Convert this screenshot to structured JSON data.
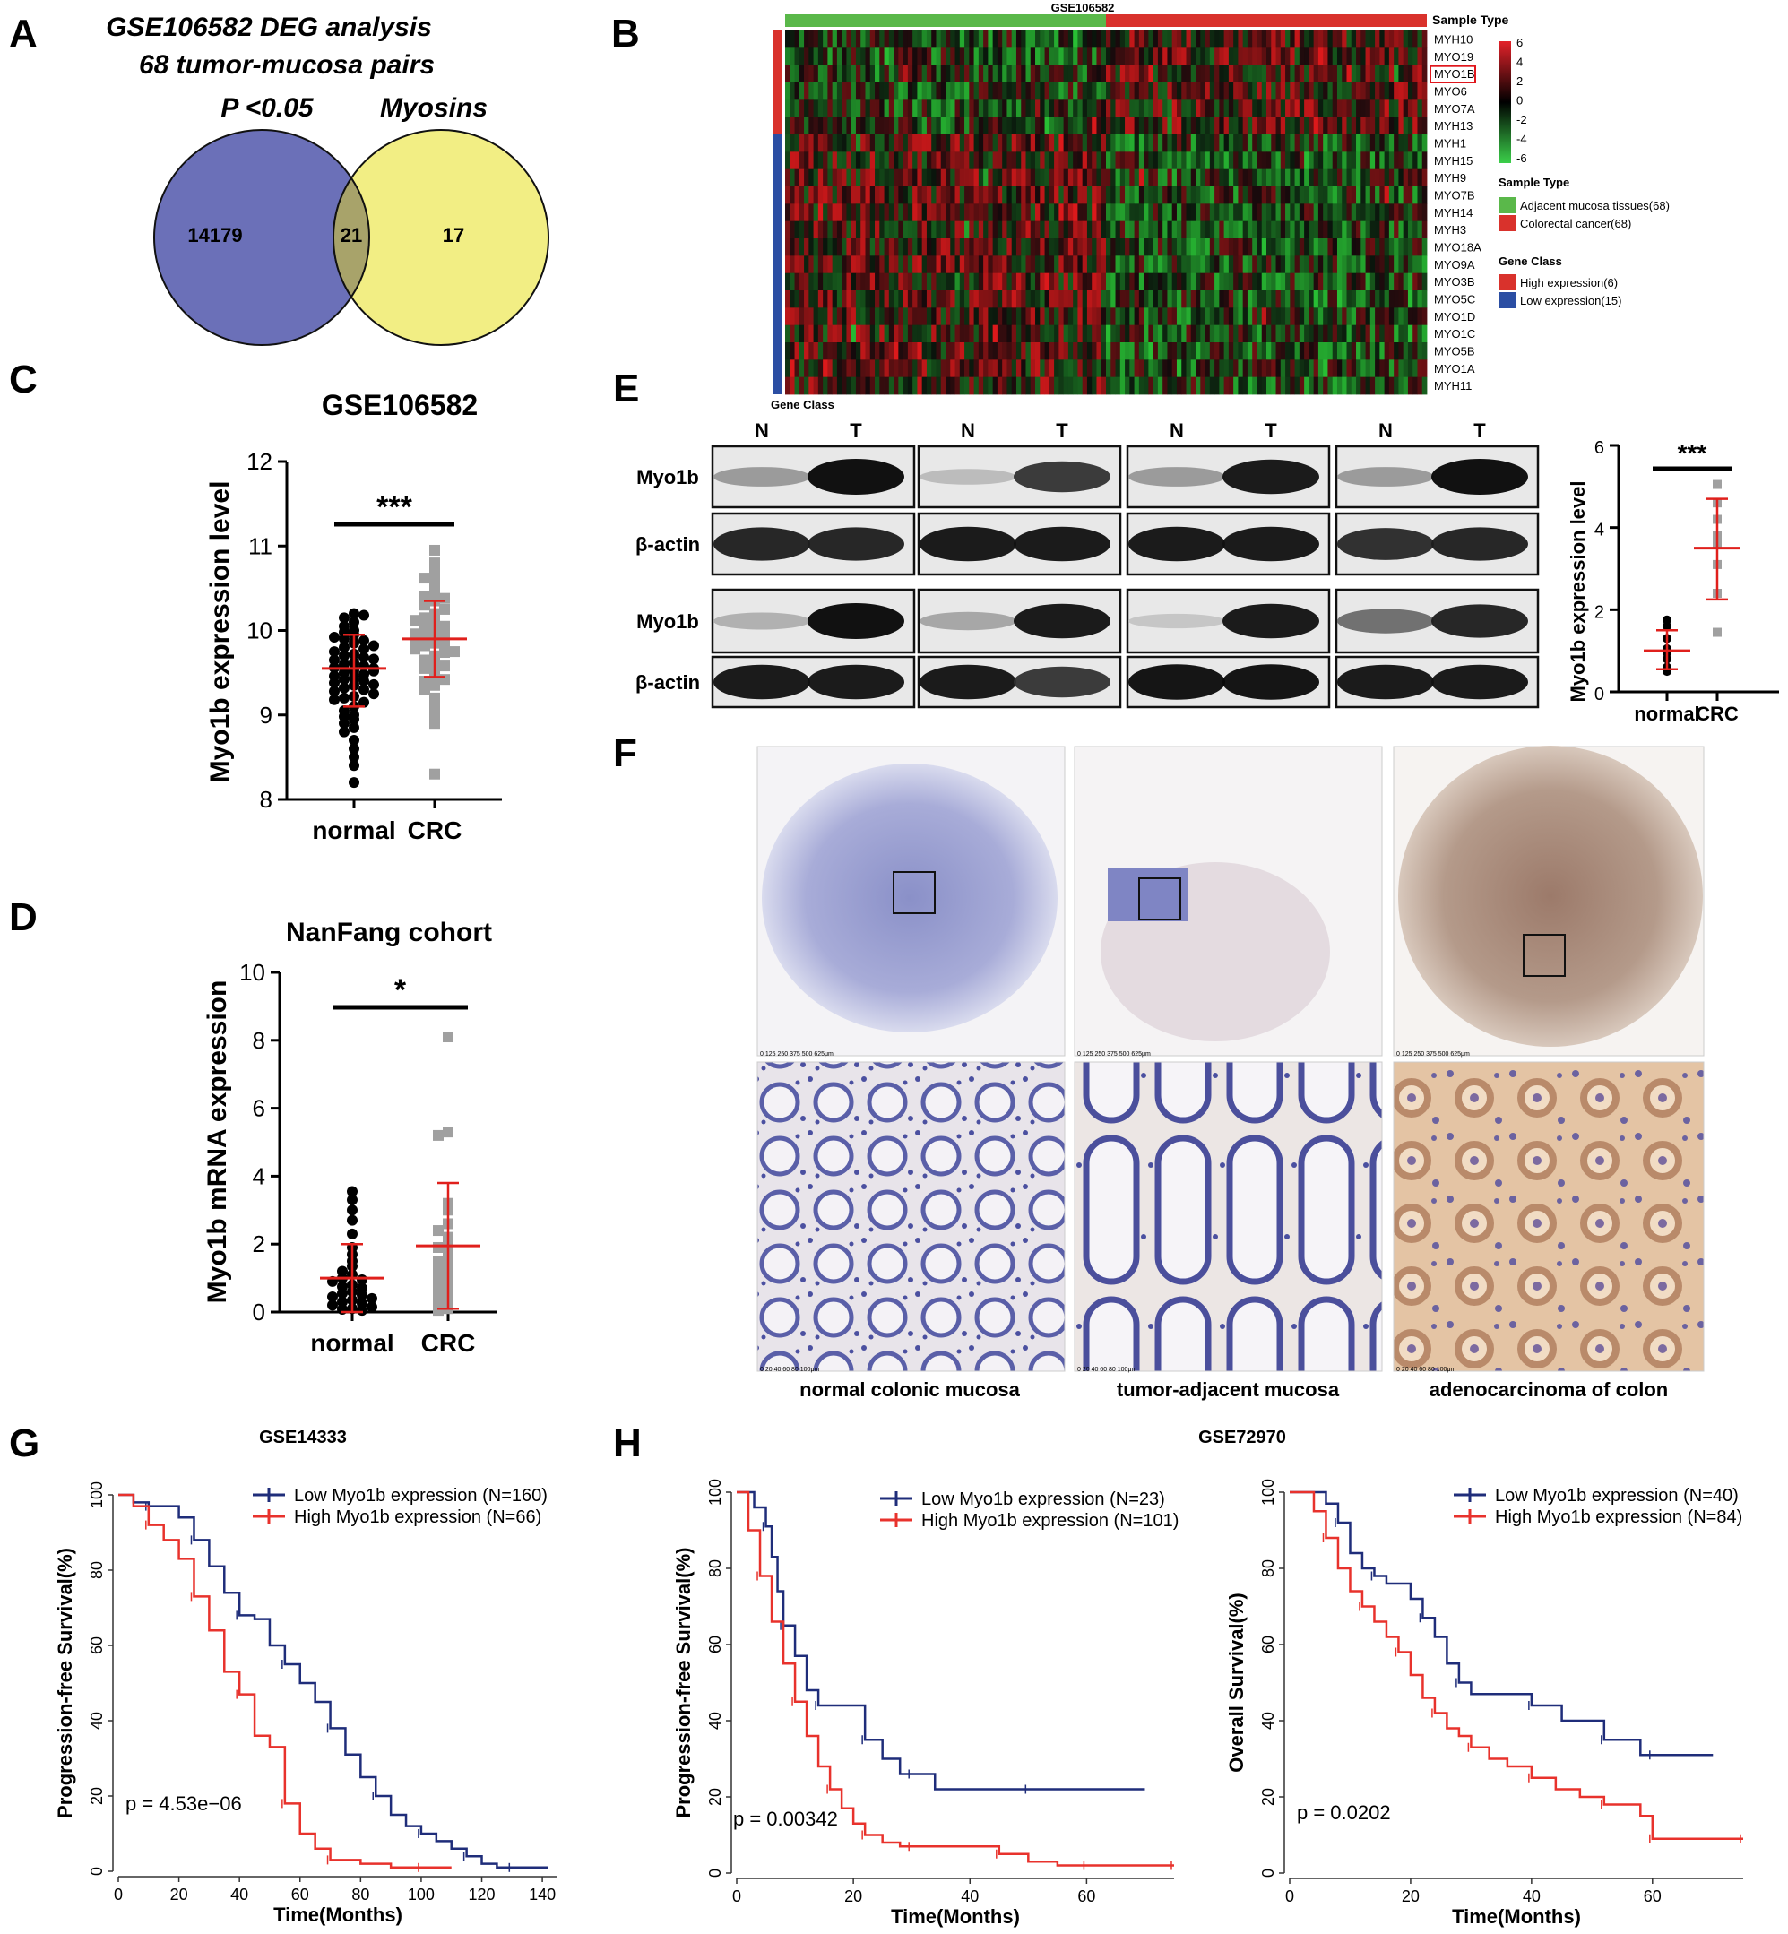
{
  "panels": {
    "A": {
      "letter": "A",
      "title_line1": "GSE106582 DEG analysis",
      "title_line2": "68 tumor-mucosa pairs",
      "set_left": "P <0.05",
      "set_right": "Myosins",
      "left_only": "14179",
      "overlap": "21",
      "right_only": "17",
      "colors": {
        "left": "#6b70b8",
        "right": "#f2ee84",
        "overlap": "#a8a36a"
      }
    },
    "B": {
      "letter": "B",
      "top_label": "GSE106582",
      "bottom_label": "Gene Class",
      "genes": [
        "MYH10",
        "MYO19",
        "MYO1B",
        "MYO6",
        "MYO7A",
        "MYH13",
        "MYH1",
        "MYH15",
        "MYH9",
        "MYO7B",
        "MYH14",
        "MYH3",
        "MYO18A",
        "MYO9A",
        "MYO3B",
        "MYO5C",
        "MYO1D",
        "MYO1C",
        "MYO5B",
        "MYO1A",
        "MYH11"
      ],
      "highlight_gene": "MYO1B",
      "legend_title_top": "Sample Type",
      "colorbar_ticks": [
        "6",
        "4",
        "2",
        "0",
        "-2",
        "-4",
        "-6"
      ],
      "sample_type_title": "Sample Type",
      "sample_types": [
        {
          "label": "Adjacent mucosa tissues(68)",
          "color": "#5ab84a"
        },
        {
          "label": "Colorectal cancer(68)",
          "color": "#d9322c"
        }
      ],
      "gene_class_title": "Gene Class",
      "gene_classes": [
        {
          "label": "High expression(6)",
          "color": "#d9322c"
        },
        {
          "label": "Low expression(15)",
          "color": "#2b4ea3"
        }
      ]
    },
    "C": {
      "letter": "C",
      "title": "GSE106582",
      "ylabel": "Myo1b expression  level",
      "sig": "***",
      "chart_data": {
        "type": "scatter",
        "title": "GSE106582",
        "ylabel": "Myo1b expression  level",
        "categories": [
          "normal",
          "CRC"
        ],
        "ylim": [
          8,
          12
        ],
        "yticks": [
          "8",
          "9",
          "10",
          "11",
          "12"
        ],
        "series": [
          {
            "name": "normal",
            "mean": 9.55,
            "sd_low": 9.1,
            "sd_high": 9.95
          },
          {
            "name": "CRC",
            "mean": 9.9,
            "sd_low": 9.45,
            "sd_high": 10.35
          }
        ],
        "points": {
          "normal": [
            10.2,
            10.15,
            10.1,
            10.05,
            10.0,
            9.98,
            9.95,
            9.9,
            9.88,
            9.85,
            9.8,
            9.78,
            9.75,
            9.72,
            9.7,
            9.68,
            9.65,
            9.62,
            9.6,
            9.58,
            9.56,
            9.55,
            9.53,
            9.5,
            9.48,
            9.46,
            9.44,
            9.42,
            9.4,
            9.38,
            9.35,
            9.32,
            9.3,
            9.28,
            9.25,
            9.22,
            9.2,
            9.15,
            9.1,
            9.05,
            9.0,
            8.95,
            8.9,
            8.85,
            8.8,
            8.7,
            8.6,
            8.5,
            8.4,
            8.2,
            10.18,
            9.92,
            9.82,
            9.66,
            9.52,
            9.36,
            9.18,
            8.98
          ],
          "CRC": [
            10.95,
            10.8,
            10.7,
            10.6,
            10.5,
            10.45,
            10.4,
            10.35,
            10.3,
            10.25,
            10.2,
            10.15,
            10.1,
            10.08,
            10.05,
            10.02,
            10.0,
            9.98,
            9.95,
            9.92,
            9.9,
            9.88,
            9.85,
            9.82,
            9.8,
            9.78,
            9.75,
            9.7,
            9.65,
            9.6,
            9.55,
            9.5,
            9.45,
            9.4,
            9.35,
            9.3,
            9.2,
            9.1,
            9.0,
            8.9,
            8.3,
            10.62,
            10.38,
            10.12,
            9.96,
            9.74,
            9.58,
            9.42
          ]
        }
      }
    },
    "D": {
      "letter": "D",
      "title": "NanFang cohort",
      "ylabel": "Myo1b mRNA expression",
      "sig": "*",
      "chart_data": {
        "type": "scatter",
        "title": "NanFang cohort",
        "ylabel": "Myo1b mRNA expression",
        "categories": [
          "normal",
          "CRC"
        ],
        "ylim": [
          0,
          10
        ],
        "yticks": [
          "0",
          "2",
          "4",
          "6",
          "8",
          "10"
        ],
        "series": [
          {
            "name": "normal",
            "mean": 1.0,
            "sd_low": 0.0,
            "sd_high": 2.0
          },
          {
            "name": "CRC",
            "mean": 1.95,
            "sd_low": 0.1,
            "sd_high": 3.8
          }
        ],
        "points": {
          "normal": [
            3.55,
            3.3,
            3.0,
            2.7,
            2.3,
            1.9,
            1.7,
            1.5,
            1.35,
            1.2,
            1.1,
            1.0,
            0.95,
            0.9,
            0.8,
            0.75,
            0.7,
            0.6,
            0.55,
            0.5,
            0.45,
            0.4,
            0.35,
            0.3,
            0.25,
            0.2,
            0.15,
            0.1,
            0.08,
            0.05
          ],
          "CRC": [
            8.1,
            5.3,
            5.2,
            3.2,
            3.0,
            2.6,
            2.4,
            2.2,
            2.0,
            1.9,
            1.8,
            1.6,
            1.5,
            1.3,
            1.2,
            1.0,
            0.9,
            0.8,
            0.7,
            0.5,
            0.4,
            0.3,
            0.2,
            0.1,
            0.05
          ]
        }
      }
    },
    "E": {
      "letter": "E",
      "lane_labels": [
        "N",
        "T",
        "N",
        "T",
        "N",
        "T",
        "N",
        "T"
      ],
      "row_labels": [
        "Myo1b",
        "β-actin",
        "Myo1b",
        "β-actin"
      ],
      "ylabel": "Myo1b expression  level",
      "sig": "***",
      "chart_data": {
        "type": "scatter",
        "ylabel": "Myo1b expression  level",
        "categories": [
          "normal",
          "CRC"
        ],
        "ylim": [
          0,
          6
        ],
        "yticks": [
          "0",
          "2",
          "4",
          "6"
        ],
        "series": [
          {
            "name": "normal",
            "mean": 1.0,
            "sd_low": 0.55,
            "sd_high": 1.5
          },
          {
            "name": "CRC",
            "mean": 3.5,
            "sd_low": 2.25,
            "sd_high": 4.7
          }
        ],
        "points": {
          "normal": [
            1.75,
            1.6,
            1.3,
            1.05,
            0.95,
            0.8,
            0.6,
            0.5
          ],
          "CRC": [
            5.05,
            4.6,
            4.2,
            3.8,
            3.6,
            3.1,
            2.4,
            1.45
          ]
        }
      }
    },
    "F": {
      "letter": "F",
      "captions": [
        "normal colonic mucosa",
        "tumor-adjacent mucosa",
        "adenocarcinoma of colon"
      ],
      "scale_top": "0   125  250  375  500  625μm",
      "scale_bottom": "0   20   40   60   80   100μm"
    },
    "G": {
      "letter": "G",
      "title": "GSE14333",
      "chart_data": {
        "type": "line",
        "title": "GSE14333",
        "xlabel": "Time(Months)",
        "ylabel": "Progression-free Survival(%)",
        "xlim": [
          0,
          145
        ],
        "ylim": [
          0,
          100
        ],
        "xticks": [
          "0",
          "20",
          "40",
          "60",
          "80",
          "100",
          "120",
          "140"
        ],
        "yticks": [
          "0",
          "20",
          "40",
          "60",
          "80",
          "100"
        ],
        "pvalue": "p = 4.53e−06",
        "series": [
          {
            "name": "Low Myo1b expression (N=160)",
            "color": "#1f2d7a",
            "x": [
              0,
              5,
              10,
              15,
              20,
              25,
              30,
              35,
              40,
              45,
              50,
              55,
              60,
              65,
              70,
              75,
              80,
              85,
              90,
              95,
              100,
              105,
              110,
              115,
              120,
              125,
              130,
              135,
              142
            ],
            "y": [
              100,
              98,
              97,
              97,
              94,
              88,
              81,
              74,
              68,
              67,
              60,
              55,
              50,
              45,
              38,
              31,
              25,
              20,
              15,
              12,
              10,
              8,
              6,
              4,
              2,
              1,
              1,
              1,
              1
            ]
          },
          {
            "name": "High Myo1b expression (N=66)",
            "color": "#e8322c",
            "x": [
              0,
              5,
              10,
              15,
              20,
              25,
              30,
              35,
              40,
              45,
              50,
              55,
              60,
              65,
              70,
              80,
              90,
              100,
              110
            ],
            "y": [
              100,
              97,
              92,
              88,
              83,
              73,
              64,
              53,
              47,
              36,
              33,
              18,
              10,
              6,
              3,
              2,
              1,
              1,
              1
            ]
          }
        ]
      }
    },
    "H1": {
      "letter": "H",
      "title": "GSE72970",
      "chart_data": {
        "type": "line",
        "title": "GSE72970",
        "xlabel": "Time(Months)",
        "ylabel": "Progression-free Survival(%)",
        "xlim": [
          0,
          75
        ],
        "ylim": [
          0,
          100
        ],
        "xticks": [
          "0",
          "20",
          "40",
          "60"
        ],
        "yticks": [
          "0",
          "20",
          "40",
          "60",
          "80",
          "100"
        ],
        "pvalue": "p = 0.00342",
        "series": [
          {
            "name": "Low Myo1b expression (N=23)",
            "color": "#1f2d7a",
            "x": [
              0,
              3,
              5,
              6,
              7,
              8,
              10,
              12,
              14,
              16,
              20,
              22,
              25,
              28,
              30,
              34,
              40,
              50,
              60,
              70
            ],
            "y": [
              100,
              96,
              91,
              83,
              74,
              65,
              57,
              48,
              44,
              44,
              44,
              35,
              30,
              26,
              26,
              22,
              22,
              22,
              22,
              22
            ]
          },
          {
            "name": "High Myo1b expression (N=101)",
            "color": "#e8322c",
            "x": [
              0,
              2,
              4,
              6,
              8,
              10,
              12,
              14,
              16,
              18,
              20,
              22,
              25,
              28,
              30,
              35,
              40,
              45,
              50,
              55,
              60,
              65,
              70,
              75
            ],
            "y": [
              100,
              90,
              78,
              66,
              55,
              45,
              36,
              28,
              22,
              17,
              13,
              10,
              8,
              7,
              7,
              7,
              7,
              5,
              3,
              2,
              2,
              2,
              2,
              2
            ]
          }
        ]
      }
    },
    "H2": {
      "chart_data": {
        "type": "line",
        "xlabel": "Time(Months)",
        "ylabel": "Overall Survival(%)",
        "xlim": [
          0,
          75
        ],
        "ylim": [
          0,
          100
        ],
        "xticks": [
          "0",
          "20",
          "40",
          "60"
        ],
        "yticks": [
          "0",
          "20",
          "40",
          "60",
          "80",
          "100"
        ],
        "pvalue": "p = 0.0202",
        "series": [
          {
            "name": "Low Myo1b expression (N=40)",
            "color": "#1f2d7a",
            "x": [
              0,
              6,
              8,
              10,
              12,
              14,
              16,
              20,
              22,
              24,
              26,
              28,
              30,
              34,
              40,
              45,
              50,
              52,
              55,
              58,
              60,
              70
            ],
            "y": [
              100,
              97,
              92,
              84,
              80,
              78,
              76,
              72,
              67,
              62,
              55,
              50,
              47,
              47,
              44,
              40,
              40,
              35,
              35,
              31,
              31,
              31
            ]
          },
          {
            "name": "High Myo1b expression (N=84)",
            "color": "#e8322c",
            "x": [
              0,
              4,
              6,
              8,
              10,
              12,
              14,
              16,
              18,
              20,
              22,
              24,
              26,
              28,
              30,
              33,
              36,
              40,
              44,
              48,
              52,
              56,
              58,
              60,
              65,
              70,
              75
            ],
            "y": [
              100,
              95,
              88,
              80,
              74,
              70,
              66,
              62,
              58,
              52,
              46,
              42,
              38,
              36,
              33,
              30,
              28,
              25,
              22,
              20,
              18,
              18,
              15,
              9,
              9,
              9,
              9
            ]
          }
        ]
      }
    }
  }
}
